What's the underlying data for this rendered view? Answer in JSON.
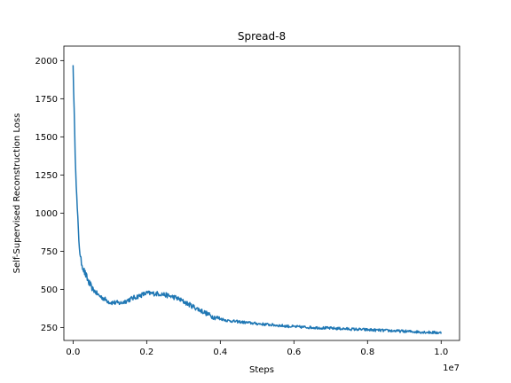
{
  "chart_data": {
    "type": "line",
    "title": "Spread-8",
    "xlabel": "Steps",
    "ylabel": "Self-Supervised Reconstruction Loss",
    "x_offset_label": "1e7",
    "x_scale": 10000000,
    "xlim": [
      -0.025,
      1.05
    ],
    "ylim": [
      165,
      2095
    ],
    "xticks": [
      0.0,
      0.2,
      0.4,
      0.6,
      0.8,
      1.0
    ],
    "xtick_labels": [
      "0.0",
      "0.2",
      "0.4",
      "0.6",
      "0.8",
      "1.0"
    ],
    "yticks": [
      250,
      500,
      750,
      1000,
      1250,
      1500,
      1750,
      2000
    ],
    "ytick_labels": [
      "250",
      "500",
      "750",
      "1000",
      "1250",
      "1500",
      "1750",
      "2000"
    ],
    "grid": false,
    "color": "#1f77b4",
    "series": [
      {
        "x": [
          0.0,
          0.005,
          0.01,
          0.015,
          0.02,
          0.03,
          0.04,
          0.05,
          0.07,
          0.1,
          0.13,
          0.16,
          0.2,
          0.24,
          0.28,
          0.3,
          0.34,
          0.38,
          0.42,
          0.46,
          0.5,
          0.55,
          0.6,
          0.65,
          0.7,
          0.75,
          0.8,
          0.85,
          0.9,
          0.95,
          1.0
        ],
        "y": [
          1970,
          1450,
          1100,
          850,
          700,
          620,
          560,
          510,
          460,
          415,
          410,
          440,
          475,
          470,
          445,
          420,
          370,
          320,
          295,
          285,
          275,
          265,
          255,
          250,
          245,
          240,
          235,
          230,
          225,
          220,
          215
        ]
      }
    ]
  }
}
